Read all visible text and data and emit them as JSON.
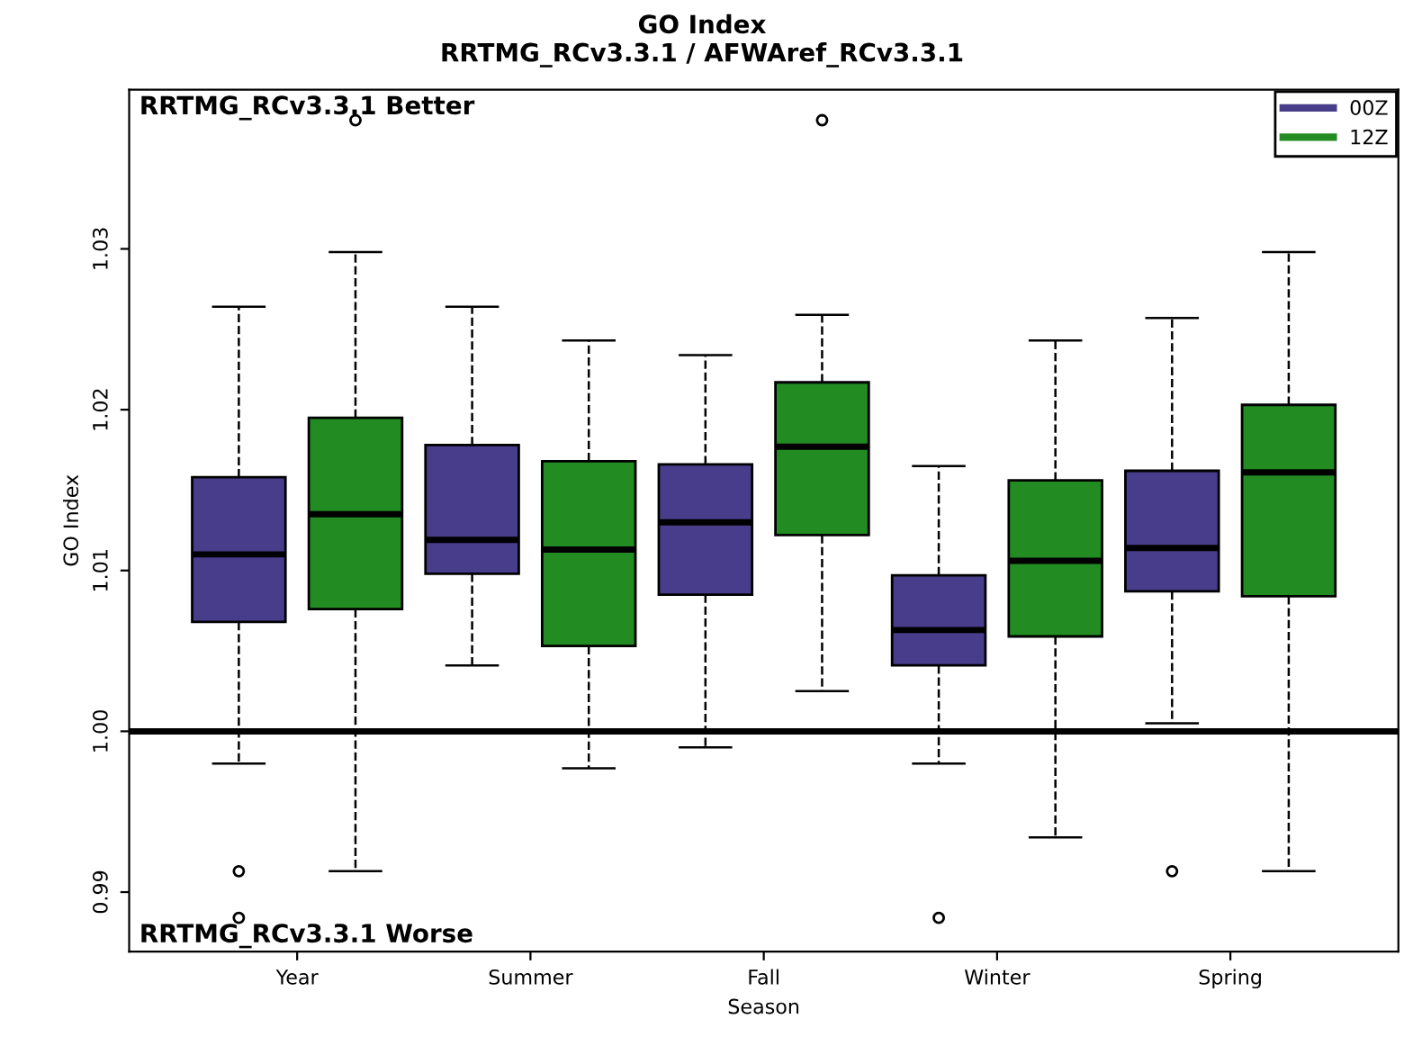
{
  "chart_data": {
    "type": "box",
    "title": "GO Index",
    "subtitle": "RRTMG_RCv3.3.1 / AFWAref_RCv3.3.1",
    "xlabel": "Season",
    "ylabel": "GO Index",
    "categories": [
      "Year",
      "Summer",
      "Fall",
      "Winter",
      "Spring"
    ],
    "series": [
      {
        "name": "00Z",
        "color": "#483d8b",
        "boxes": [
          {
            "low": 0.998,
            "q1": 1.0068,
            "median": 1.011,
            "q3": 1.0158,
            "high": 1.0264,
            "outliers": [
              0.9913,
              0.9884
            ]
          },
          {
            "low": 1.0041,
            "q1": 1.0098,
            "median": 1.0119,
            "q3": 1.0178,
            "high": 1.0264
          },
          {
            "low": 0.999,
            "q1": 1.0085,
            "median": 1.013,
            "q3": 1.0166,
            "high": 1.0234
          },
          {
            "low": 0.998,
            "q1": 1.0041,
            "median": 1.0063,
            "q3": 1.0097,
            "high": 1.0165,
            "outliers": [
              0.9884
            ]
          },
          {
            "low": 1.0005,
            "q1": 1.0087,
            "median": 1.0114,
            "q3": 1.0162,
            "high": 1.0257,
            "outliers": [
              0.9913
            ]
          }
        ]
      },
      {
        "name": "12Z",
        "color": "#228b22",
        "boxes": [
          {
            "low": 0.9913,
            "q1": 1.0076,
            "median": 1.0135,
            "q3": 1.0195,
            "high": 1.0298,
            "outliers": [
              1.038
            ]
          },
          {
            "low": 0.9977,
            "q1": 1.0053,
            "median": 1.0113,
            "q3": 1.0168,
            "high": 1.0243
          },
          {
            "low": 1.0025,
            "q1": 1.0122,
            "median": 1.0177,
            "q3": 1.0217,
            "high": 1.0259,
            "outliers": [
              1.038
            ]
          },
          {
            "low": 0.9934,
            "q1": 1.0059,
            "median": 1.0106,
            "q3": 1.0156,
            "high": 1.0243
          },
          {
            "low": 0.9913,
            "q1": 1.0084,
            "median": 1.0161,
            "q3": 1.0203,
            "high": 1.0298
          }
        ]
      }
    ],
    "ylim": [
      0.9863,
      1.0399
    ],
    "yticks": [
      {
        "value": 0.99,
        "label": "0.99"
      },
      {
        "value": 1.0,
        "label": "1.00"
      },
      {
        "value": 1.01,
        "label": "1.01"
      },
      {
        "value": 1.02,
        "label": "1.02"
      },
      {
        "value": 1.03,
        "label": "1.03"
      }
    ],
    "ref_lines": [
      {
        "axis": "y",
        "value": 1.0,
        "color": "#000000"
      }
    ],
    "annotations": [
      "RRTMG_RCv3.3.1 Better",
      "RRTMG_RCv3.3.1 Worse"
    ],
    "legend": "top right",
    "grid": false
  }
}
